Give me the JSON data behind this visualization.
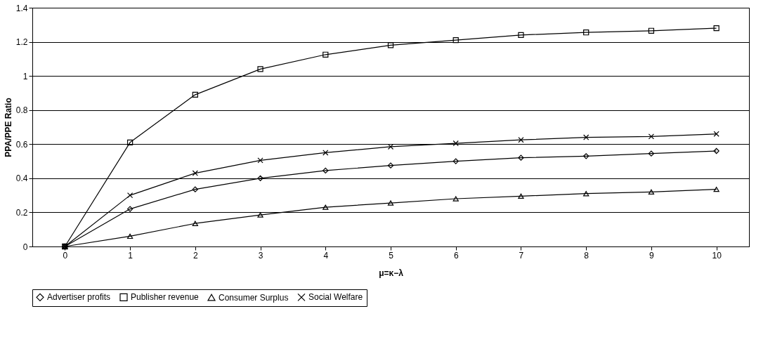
{
  "chart_data": {
    "type": "line",
    "xlabel": "μ=κ−λ",
    "ylabel": "PPA/PPE Ratio",
    "categories": [
      "0",
      "1",
      "2",
      "3",
      "4",
      "5",
      "6",
      "7",
      "8",
      "9",
      "10"
    ],
    "series": [
      {
        "name": "Advertiser profits",
        "color": "#000000",
        "marker": "diamond",
        "values": [
          0,
          0.22,
          0.335,
          0.4,
          0.445,
          0.475,
          0.5,
          0.52,
          0.53,
          0.545,
          0.56
        ]
      },
      {
        "name": "Publisher revenue",
        "color": "#000000",
        "marker": "square",
        "values": [
          0,
          0.61,
          0.89,
          1.04,
          1.125,
          1.18,
          1.21,
          1.24,
          1.255,
          1.265,
          1.28
        ]
      },
      {
        "name": "Consumer Surplus",
        "color": "#000000",
        "marker": "triangle",
        "values": [
          0,
          0.06,
          0.135,
          0.185,
          0.23,
          0.255,
          0.28,
          0.295,
          0.31,
          0.32,
          0.335
        ]
      },
      {
        "name": "Social Welfare",
        "color": "#000000",
        "marker": "cross",
        "values": [
          0,
          0.3,
          0.43,
          0.505,
          0.55,
          0.585,
          0.605,
          0.625,
          0.64,
          0.645,
          0.66
        ]
      }
    ],
    "ylim": [
      0,
      1.4
    ],
    "yticks": [
      0,
      0.2,
      0.4,
      0.6,
      0.8,
      1,
      1.2,
      1.4
    ],
    "grid": "y",
    "legend": "bottom",
    "line_style": "solid"
  }
}
